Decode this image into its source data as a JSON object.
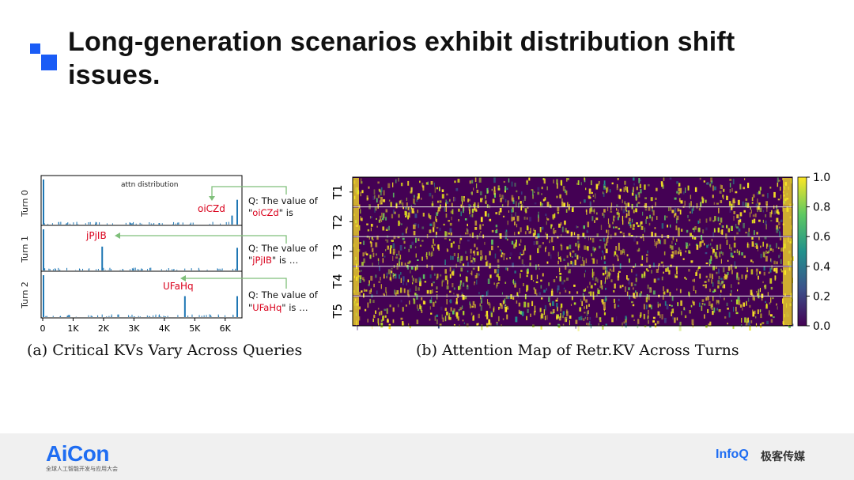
{
  "slide": {
    "title": "Long-generation scenarios exhibit distribution shift issues."
  },
  "figure_a": {
    "panel_title": "attn distribution",
    "caption": "(a) Critical KVs Vary Across Queries",
    "turns": [
      {
        "label": "Turn 0",
        "key": "oiCZd",
        "q_line1": "Q: The value of",
        "q_pre": "\"",
        "q_key": "oiCZd",
        "q_post": "\" is"
      },
      {
        "label": "Turn 1",
        "key": "jPjIB",
        "q_line1": "Q: The value of",
        "q_pre": "\"",
        "q_key": "jPjIB",
        "q_post": "\" is …"
      },
      {
        "label": "Turn 2",
        "key": "UFaHq",
        "q_line1": "Q: The value of",
        "q_pre": "\"",
        "q_key": "UFaHq",
        "q_post": "\" is …"
      }
    ],
    "x_ticks": [
      "0",
      "1K",
      "2K",
      "3K",
      "4K",
      "5K",
      "6K"
    ]
  },
  "figure_b": {
    "caption": "(b) Attention Map of Retr.KV Across Turns",
    "row_labels": [
      "T1",
      "T2",
      "T3",
      "T4",
      "T5"
    ],
    "colorbar_ticks": [
      "1.0",
      "0.8",
      "0.6",
      "0.4",
      "0.2",
      "0.0"
    ]
  },
  "chart_data": [
    {
      "type": "bar",
      "title": "attn distribution",
      "xlabel": "",
      "ylabel": "",
      "x_range": [
        0,
        6500
      ],
      "series": [
        {
          "name": "Turn 0",
          "peaks": [
            {
              "x": 0,
              "y": 1.0
            },
            {
              "x": 6200,
              "y": 0.2
            },
            {
              "x": 6370,
              "y": 0.55
            }
          ]
        },
        {
          "name": "Turn 1",
          "peaks": [
            {
              "x": 0,
              "y": 1.0
            },
            {
              "x": 1930,
              "y": 0.58
            },
            {
              "x": 6370,
              "y": 0.55
            }
          ]
        },
        {
          "name": "Turn 2",
          "peaks": [
            {
              "x": 0,
              "y": 1.0
            },
            {
              "x": 4650,
              "y": 0.5
            },
            {
              "x": 6370,
              "y": 0.5
            }
          ]
        }
      ]
    },
    {
      "type": "heatmap",
      "row_labels": [
        "T1",
        "T2",
        "T3",
        "T4",
        "T5"
      ],
      "colorbar_range": [
        0.0,
        1.0
      ],
      "colorbar_ticks": [
        1.0,
        0.8,
        0.6,
        0.4,
        0.2,
        0.0
      ]
    }
  ],
  "footer": {
    "aicon_logo": "AiCon",
    "aicon_sub": "全球人工智能开发与应用大会",
    "infoq_logo": "InfoQ",
    "infoq_cn": "极客传媒"
  }
}
